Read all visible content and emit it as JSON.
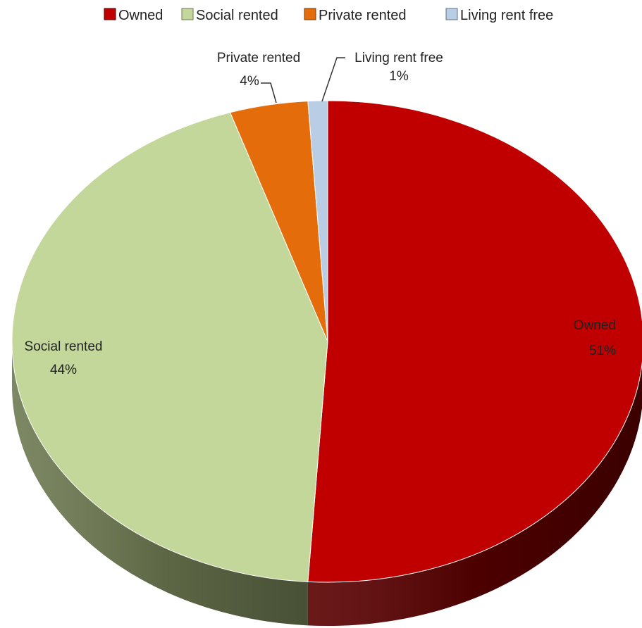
{
  "chart_data": {
    "type": "pie",
    "title": "",
    "categories": [
      "Owned",
      "Social rented",
      "Private rented",
      "Living rent free"
    ],
    "values": [
      51,
      44,
      4,
      1
    ],
    "data_labels": [
      "51%",
      "44%",
      "4%",
      "1%"
    ],
    "colors": [
      "#c00000",
      "#c4d79b",
      "#e46c0a",
      "#b9cde5"
    ],
    "side_colors": [
      "#5a0000",
      "#6e7a52",
      "#7a3a06",
      "#5e6f86"
    ],
    "legend": {
      "position": "top",
      "entries": [
        "Owned",
        "Social rented",
        "Private rented",
        "Living rent free"
      ]
    },
    "style": "3d-pie"
  }
}
